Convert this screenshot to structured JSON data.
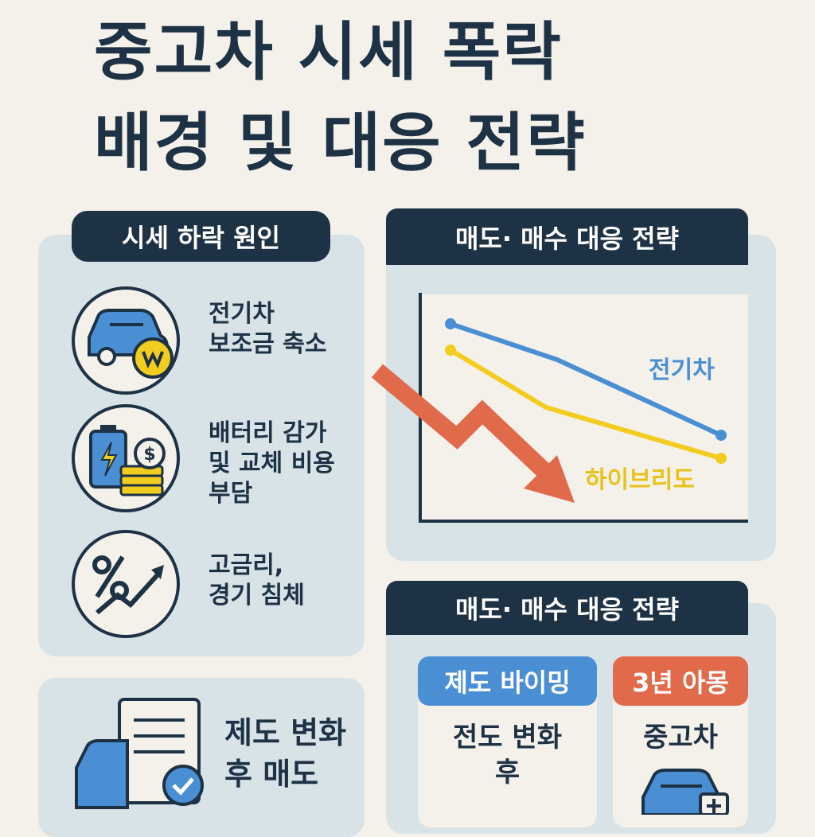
{
  "header": {
    "title": [
      "중고차 시세 폭락",
      "배경 및 대응 전략"
    ]
  },
  "causes": {
    "title": "시세 하락 원인",
    "items": [
      [
        "전기차",
        "보조금 축소"
      ],
      [
        "배터리 감가",
        "및 교체 비용",
        "부담"
      ],
      [
        "고금리,",
        "경기 침체"
      ]
    ]
  },
  "sell_tip": [
    "제도 변화",
    "후 매도"
  ],
  "trend_panel": {
    "title": "매도· 매수 대응 전략",
    "labels": [
      "전기차",
      "하이브리도"
    ]
  },
  "strategy_panel": {
    "title": "매도· 매수 대응 전략",
    "cards": [
      {
        "tag": "제도 바이밍",
        "text": [
          "전도 변화",
          "후"
        ]
      },
      {
        "tag": "3년 아몽",
        "text": [
          "중고차"
        ]
      }
    ]
  }
}
